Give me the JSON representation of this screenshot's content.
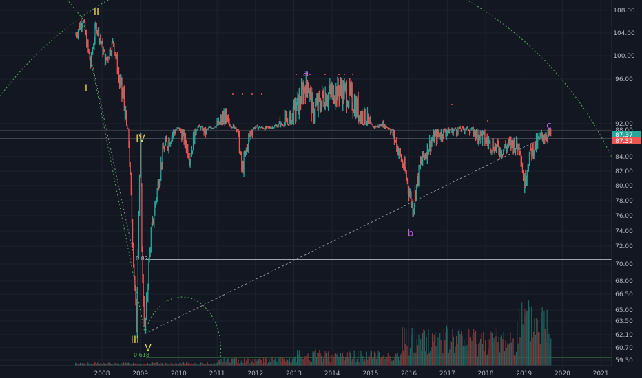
{
  "chart_data": {
    "type": "candlestick",
    "y_axis": {
      "ticks": [
        108.0,
        104.0,
        100.0,
        96.0,
        92.0,
        88.0,
        84.0,
        82.0,
        80.0,
        78.0,
        76.0,
        74.0,
        72.0,
        70.0,
        68.0,
        66.5,
        65.0,
        63.5,
        62.1,
        60.7,
        59.3
      ],
      "labels": [
        "108.00",
        "104.00",
        "100.00",
        "96.00",
        "92.00",
        "88.00",
        "84.00",
        "82.00",
        "80.00",
        "78.00",
        "76.00",
        "74.00",
        "72.00",
        "70.00",
        "68.00",
        "66.50",
        "65.00",
        "63.50",
        "62.10",
        "60.70",
        "59.30"
      ]
    },
    "x_axis": {
      "labels": [
        "2008",
        "2009",
        "2010",
        "2011",
        "2012",
        "2013",
        "2014",
        "2015",
        "2016",
        "2017",
        "2018",
        "2019",
        "2020",
        "2021"
      ],
      "range": [
        2007.0,
        2021.6
      ]
    },
    "price_path": [
      [
        2007.3,
        103.5
      ],
      [
        2007.5,
        106.5
      ],
      [
        2007.7,
        98.5
      ],
      [
        2007.85,
        105.5
      ],
      [
        2008.1,
        99.0
      ],
      [
        2008.3,
        102.5
      ],
      [
        2008.45,
        96.0
      ],
      [
        2008.6,
        93.5
      ],
      [
        2008.7,
        86.0
      ],
      [
        2008.82,
        70.5
      ],
      [
        2008.9,
        63.0
      ],
      [
        2009.0,
        86.0
      ],
      [
        2009.05,
        69.0
      ],
      [
        2009.12,
        62.2
      ],
      [
        2009.25,
        72.0
      ],
      [
        2009.4,
        78.0
      ],
      [
        2009.6,
        85.0
      ],
      [
        2009.8,
        87.0
      ],
      [
        2010.0,
        89.0
      ],
      [
        2010.3,
        84.0
      ],
      [
        2010.5,
        90.0
      ],
      [
        2010.7,
        88.0
      ],
      [
        2011.0,
        91.0
      ],
      [
        2011.2,
        92.3
      ],
      [
        2011.5,
        89.5
      ],
      [
        2011.65,
        82.0
      ],
      [
        2011.8,
        86.0
      ],
      [
        2012.0,
        90.0
      ],
      [
        2012.3,
        89.0
      ],
      [
        2012.6,
        91.0
      ],
      [
        2012.9,
        92.0
      ],
      [
        2013.2,
        94.5
      ],
      [
        2013.35,
        96.0
      ],
      [
        2013.5,
        93.0
      ],
      [
        2013.8,
        94.5
      ],
      [
        2014.2,
        95.0
      ],
      [
        2014.45,
        94.5
      ],
      [
        2014.7,
        93.0
      ],
      [
        2014.9,
        92.0
      ],
      [
        2015.1,
        90.0
      ],
      [
        2015.3,
        91.0
      ],
      [
        2015.5,
        89.0
      ],
      [
        2015.75,
        84.5
      ],
      [
        2015.9,
        82.0
      ],
      [
        2016.1,
        77.0
      ],
      [
        2016.3,
        83.0
      ],
      [
        2016.6,
        86.5
      ],
      [
        2016.9,
        88.0
      ],
      [
        2017.2,
        88.5
      ],
      [
        2017.5,
        89.0
      ],
      [
        2017.8,
        87.5
      ],
      [
        2018.1,
        86.0
      ],
      [
        2018.4,
        85.0
      ],
      [
        2018.7,
        86.0
      ],
      [
        2018.9,
        85.5
      ],
      [
        2019.0,
        80.0
      ],
      [
        2019.15,
        84.5
      ],
      [
        2019.4,
        86.5
      ],
      [
        2019.6,
        87.5
      ],
      [
        2019.7,
        87.4
      ]
    ],
    "price_badges": [
      {
        "value": "87.37",
        "color": "#26a69a"
      },
      {
        "value": "87.32",
        "color": "#ef5350"
      }
    ],
    "wave_labels": [
      {
        "text": "I",
        "color": "#e8d44d"
      },
      {
        "text": "II",
        "color": "#e8d44d"
      },
      {
        "text": "III",
        "color": "#e8d44d"
      },
      {
        "text": "IV",
        "color": "#e8d44d"
      },
      {
        "text": "V",
        "color": "#e8d44d"
      },
      {
        "text": "a",
        "color": "#c45ee8"
      },
      {
        "text": "b",
        "color": "#c45ee8"
      },
      {
        "text": "c",
        "color": "#c45ee8"
      }
    ],
    "annotations": [
      {
        "text": "0.618",
        "color": "#4caf50"
      },
      {
        "text": "0.82",
        "color": "#b2b5be"
      }
    ],
    "horizontal_line": 70.5,
    "colors": {
      "up": "#26a69a",
      "down": "#ef5350",
      "arc": "#4caf50",
      "background": "#131722"
    }
  }
}
